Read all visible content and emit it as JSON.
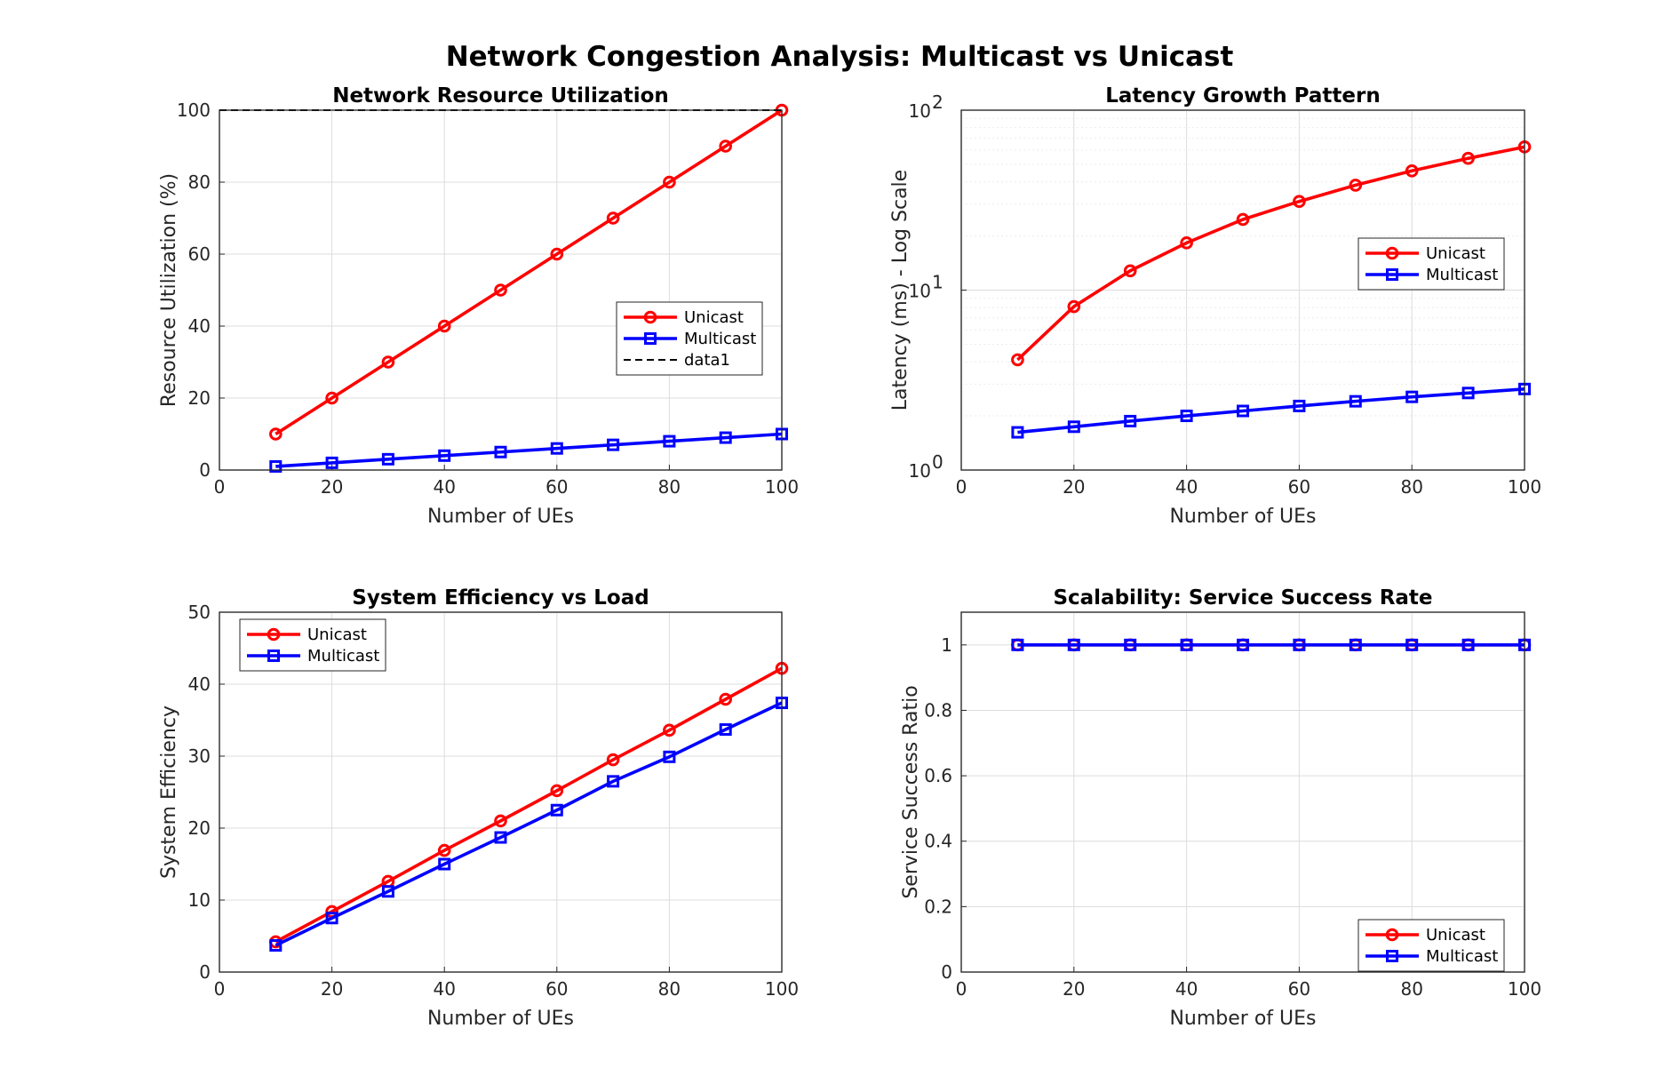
{
  "figure_title": "Network Congestion Analysis: Multicast vs Unicast",
  "colors": {
    "Unicast": "#ff0000",
    "Multicast": "#0000ff",
    "data1": "#000000"
  },
  "chart_data": [
    {
      "type": "line",
      "title": "Network Resource Utilization",
      "xlabel": "Number of UEs",
      "ylabel": "Resource Utilization (%)",
      "xlim": [
        0,
        100
      ],
      "ylim": [
        0,
        100
      ],
      "xticks": [
        "0",
        "20",
        "40",
        "60",
        "80",
        "100"
      ],
      "yticks": [
        "0",
        "20",
        "40",
        "60",
        "80",
        "100"
      ],
      "grid": true,
      "legend_position": "right-middle",
      "x": [
        10,
        20,
        30,
        40,
        50,
        60,
        70,
        80,
        90,
        100
      ],
      "series": [
        {
          "name": "Unicast",
          "marker": "o",
          "values": [
            10,
            20,
            30,
            40,
            50,
            60,
            70,
            80,
            90,
            100
          ]
        },
        {
          "name": "Multicast",
          "marker": "s",
          "values": [
            1,
            2,
            3,
            4,
            5,
            6,
            7,
            8,
            9,
            10
          ]
        },
        {
          "name": "data1",
          "style": "dashed",
          "x": [
            0,
            100
          ],
          "values": [
            100,
            100
          ]
        }
      ]
    },
    {
      "type": "line",
      "title": "Latency Growth Pattern",
      "xlabel": "Number of UEs",
      "ylabel": "Latency (ms) - Log Scale",
      "xlim": [
        0,
        100
      ],
      "ylim": [
        1,
        100
      ],
      "yscale": "log",
      "xticks": [
        "0",
        "20",
        "40",
        "60",
        "80",
        "100"
      ],
      "yticks": [
        "10",
        "10",
        "10"
      ],
      "ytick_exponents": [
        "0",
        "1",
        "2"
      ],
      "grid": true,
      "legend_position": "right-upper",
      "x": [
        10,
        20,
        30,
        40,
        50,
        60,
        70,
        80,
        90,
        100
      ],
      "series": [
        {
          "name": "Unicast",
          "marker": "o",
          "values": [
            4.1,
            8.1,
            12.8,
            18.3,
            24.7,
            31.1,
            38.3,
            46.0,
            54.0,
            62.5
          ]
        },
        {
          "name": "Multicast",
          "marker": "s",
          "values": [
            1.62,
            1.74,
            1.87,
            2.0,
            2.13,
            2.27,
            2.41,
            2.55,
            2.68,
            2.82
          ]
        }
      ]
    },
    {
      "type": "line",
      "title": "System Efficiency vs Load",
      "xlabel": "Number of UEs",
      "ylabel": "System Efficiency",
      "xlim": [
        0,
        100
      ],
      "ylim": [
        0,
        50
      ],
      "xticks": [
        "0",
        "20",
        "40",
        "60",
        "80",
        "100"
      ],
      "yticks": [
        "0",
        "10",
        "20",
        "30",
        "40",
        "50"
      ],
      "grid": true,
      "legend_position": "top-left",
      "x": [
        10,
        20,
        30,
        40,
        50,
        60,
        70,
        80,
        90,
        100
      ],
      "series": [
        {
          "name": "Unicast",
          "marker": "o",
          "values": [
            4.2,
            8.4,
            12.6,
            16.9,
            21.0,
            25.2,
            29.5,
            33.6,
            37.9,
            42.2
          ]
        },
        {
          "name": "Multicast",
          "marker": "s",
          "values": [
            3.7,
            7.5,
            11.2,
            15.0,
            18.7,
            22.5,
            26.5,
            29.9,
            33.7,
            37.4
          ]
        }
      ]
    },
    {
      "type": "line",
      "title": "Scalability: Service Success Rate",
      "xlabel": "Number of UEs",
      "ylabel": "Service Success Ratio",
      "xlim": [
        0,
        100
      ],
      "ylim": [
        0,
        1.1
      ],
      "xticks": [
        "0",
        "20",
        "40",
        "60",
        "80",
        "100"
      ],
      "yticks": [
        "0",
        "0.2",
        "0.4",
        "0.6",
        "0.8",
        "1"
      ],
      "grid": true,
      "legend_position": "bottom-right",
      "x": [
        10,
        20,
        30,
        40,
        50,
        60,
        70,
        80,
        90,
        100
      ],
      "series": [
        {
          "name": "Unicast",
          "marker": "o",
          "values": [
            1,
            1,
            1,
            1,
            1,
            1,
            1,
            1,
            1,
            1
          ]
        },
        {
          "name": "Multicast",
          "marker": "s",
          "values": [
            1,
            1,
            1,
            1,
            1,
            1,
            1,
            1,
            1,
            1
          ]
        }
      ]
    }
  ]
}
